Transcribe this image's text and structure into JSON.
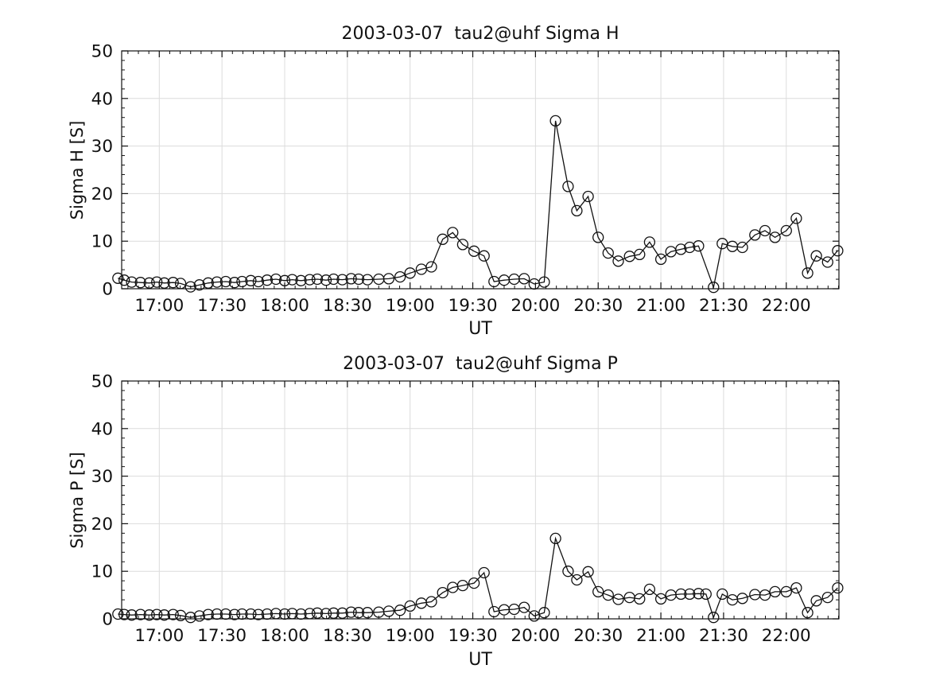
{
  "page": {
    "background": "#ffffff"
  },
  "chart_data": [
    {
      "type": "line",
      "title": "2003-03-07  tau2@uhf Sigma H",
      "xlabel": "UT",
      "ylabel": "Sigma H [S]",
      "ylim": [
        0,
        50
      ],
      "xlim_hours": [
        16.7,
        22.42
      ],
      "yticks": [
        0,
        10,
        20,
        30,
        40,
        50
      ],
      "xticks": [
        {
          "t": 17.0,
          "label": "17:00"
        },
        {
          "t": 17.5,
          "label": "17:30"
        },
        {
          "t": 18.0,
          "label": "18:00"
        },
        {
          "t": 18.5,
          "label": "18:30"
        },
        {
          "t": 19.0,
          "label": "19:00"
        },
        {
          "t": 19.5,
          "label": "19:30"
        },
        {
          "t": 20.0,
          "label": "20:00"
        },
        {
          "t": 20.5,
          "label": "20:30"
        },
        {
          "t": 21.0,
          "label": "21:00"
        },
        {
          "t": 21.5,
          "label": "21:30"
        },
        {
          "t": 22.0,
          "label": "22:00"
        }
      ],
      "x_minor_step_minutes": 5,
      "y_minor_step": 2,
      "grid": true,
      "grid_color": "#dcdcdc",
      "line_color": "#111111",
      "marker": "open-circle",
      "points": [
        [
          16.67,
          2.2
        ],
        [
          16.72,
          1.8
        ],
        [
          16.78,
          1.4
        ],
        [
          16.85,
          1.3
        ],
        [
          16.92,
          1.2
        ],
        [
          16.98,
          1.4
        ],
        [
          17.04,
          1.2
        ],
        [
          17.11,
          1.3
        ],
        [
          17.17,
          1.1
        ],
        [
          17.25,
          0.4
        ],
        [
          17.32,
          0.8
        ],
        [
          17.39,
          1.2
        ],
        [
          17.46,
          1.4
        ],
        [
          17.53,
          1.5
        ],
        [
          17.6,
          1.3
        ],
        [
          17.66,
          1.5
        ],
        [
          17.73,
          1.7
        ],
        [
          17.79,
          1.5
        ],
        [
          17.86,
          1.8
        ],
        [
          17.93,
          2.0
        ],
        [
          18.0,
          1.7
        ],
        [
          18.06,
          1.9
        ],
        [
          18.13,
          1.7
        ],
        [
          18.2,
          1.9
        ],
        [
          18.26,
          2.0
        ],
        [
          18.33,
          1.8
        ],
        [
          18.39,
          2.0
        ],
        [
          18.46,
          1.9
        ],
        [
          18.53,
          2.1
        ],
        [
          18.59,
          2.0
        ],
        [
          18.66,
          1.9
        ],
        [
          18.75,
          2.0
        ],
        [
          18.83,
          2.1
        ],
        [
          18.92,
          2.5
        ],
        [
          19.0,
          3.3
        ],
        [
          19.09,
          4.1
        ],
        [
          19.17,
          4.6
        ],
        [
          19.26,
          10.4
        ],
        [
          19.34,
          11.8
        ],
        [
          19.42,
          9.3
        ],
        [
          19.51,
          7.9
        ],
        [
          19.59,
          6.9
        ],
        [
          19.67,
          1.5
        ],
        [
          19.75,
          1.8
        ],
        [
          19.83,
          2.0
        ],
        [
          19.91,
          2.1
        ],
        [
          19.99,
          1.0
        ],
        [
          20.07,
          1.4
        ],
        [
          20.16,
          35.3
        ],
        [
          20.26,
          21.5
        ],
        [
          20.33,
          16.4
        ],
        [
          20.42,
          19.4
        ],
        [
          20.5,
          10.8
        ],
        [
          20.58,
          7.5
        ],
        [
          20.66,
          5.8
        ],
        [
          20.75,
          6.8
        ],
        [
          20.83,
          7.2
        ],
        [
          20.91,
          9.8
        ],
        [
          21.0,
          6.2
        ],
        [
          21.08,
          7.8
        ],
        [
          21.16,
          8.3
        ],
        [
          21.23,
          8.7
        ],
        [
          21.3,
          9.0
        ],
        [
          21.42,
          0.3
        ],
        [
          21.49,
          9.5
        ],
        [
          21.57,
          8.9
        ],
        [
          21.65,
          8.7
        ],
        [
          21.75,
          11.3
        ],
        [
          21.83,
          12.2
        ],
        [
          21.91,
          10.8
        ],
        [
          22.0,
          12.2
        ],
        [
          22.08,
          14.8
        ],
        [
          22.17,
          3.3
        ],
        [
          22.24,
          6.9
        ],
        [
          22.33,
          5.6
        ],
        [
          22.41,
          8.0
        ]
      ]
    },
    {
      "type": "line",
      "title": "2003-03-07  tau2@uhf Sigma P",
      "xlabel": "UT",
      "ylabel": "Sigma P [S]",
      "ylim": [
        0,
        50
      ],
      "xlim_hours": [
        16.7,
        22.42
      ],
      "yticks": [
        0,
        10,
        20,
        30,
        40,
        50
      ],
      "xticks": [
        {
          "t": 17.0,
          "label": "17:00"
        },
        {
          "t": 17.5,
          "label": "17:30"
        },
        {
          "t": 18.0,
          "label": "18:00"
        },
        {
          "t": 18.5,
          "label": "18:30"
        },
        {
          "t": 19.0,
          "label": "19:00"
        },
        {
          "t": 19.5,
          "label": "19:30"
        },
        {
          "t": 20.0,
          "label": "20:00"
        },
        {
          "t": 20.5,
          "label": "20:30"
        },
        {
          "t": 21.0,
          "label": "21:00"
        },
        {
          "t": 21.5,
          "label": "21:30"
        },
        {
          "t": 22.0,
          "label": "22:00"
        }
      ],
      "x_minor_step_minutes": 5,
      "y_minor_step": 2,
      "grid": true,
      "grid_color": "#dcdcdc",
      "line_color": "#111111",
      "marker": "open-circle",
      "points": [
        [
          16.67,
          1.0
        ],
        [
          16.72,
          0.9
        ],
        [
          16.78,
          0.8
        ],
        [
          16.85,
          0.9
        ],
        [
          16.92,
          0.8
        ],
        [
          16.98,
          0.9
        ],
        [
          17.04,
          0.8
        ],
        [
          17.11,
          0.9
        ],
        [
          17.17,
          0.7
        ],
        [
          17.25,
          0.3
        ],
        [
          17.32,
          0.6
        ],
        [
          17.39,
          0.9
        ],
        [
          17.46,
          1.0
        ],
        [
          17.53,
          1.0
        ],
        [
          17.6,
          0.9
        ],
        [
          17.66,
          1.0
        ],
        [
          17.73,
          1.0
        ],
        [
          17.79,
          0.9
        ],
        [
          17.86,
          1.0
        ],
        [
          17.93,
          1.1
        ],
        [
          18.0,
          1.0
        ],
        [
          18.06,
          1.1
        ],
        [
          18.13,
          1.0
        ],
        [
          18.2,
          1.1
        ],
        [
          18.26,
          1.2
        ],
        [
          18.33,
          1.1
        ],
        [
          18.39,
          1.2
        ],
        [
          18.46,
          1.2
        ],
        [
          18.53,
          1.4
        ],
        [
          18.59,
          1.3
        ],
        [
          18.66,
          1.3
        ],
        [
          18.75,
          1.4
        ],
        [
          18.83,
          1.6
        ],
        [
          18.92,
          1.8
        ],
        [
          19.0,
          2.7
        ],
        [
          19.09,
          3.3
        ],
        [
          19.17,
          3.6
        ],
        [
          19.26,
          5.5
        ],
        [
          19.34,
          6.6
        ],
        [
          19.42,
          7.0
        ],
        [
          19.51,
          7.5
        ],
        [
          19.59,
          9.7
        ],
        [
          19.67,
          1.5
        ],
        [
          19.75,
          1.9
        ],
        [
          19.83,
          2.0
        ],
        [
          19.91,
          2.4
        ],
        [
          19.99,
          0.6
        ],
        [
          20.07,
          1.3
        ],
        [
          20.16,
          16.9
        ],
        [
          20.26,
          10.0
        ],
        [
          20.33,
          8.2
        ],
        [
          20.42,
          9.9
        ],
        [
          20.5,
          5.7
        ],
        [
          20.58,
          5.0
        ],
        [
          20.66,
          4.1
        ],
        [
          20.75,
          4.5
        ],
        [
          20.83,
          4.2
        ],
        [
          20.91,
          6.2
        ],
        [
          21.0,
          4.2
        ],
        [
          21.08,
          5.0
        ],
        [
          21.16,
          5.2
        ],
        [
          21.23,
          5.2
        ],
        [
          21.3,
          5.3
        ],
        [
          21.36,
          5.2
        ],
        [
          21.42,
          0.3
        ],
        [
          21.49,
          5.2
        ],
        [
          21.57,
          4.0
        ],
        [
          21.65,
          4.3
        ],
        [
          21.75,
          5.1
        ],
        [
          21.83,
          5.0
        ],
        [
          21.91,
          5.7
        ],
        [
          22.0,
          5.7
        ],
        [
          22.08,
          6.5
        ],
        [
          22.17,
          1.3
        ],
        [
          22.24,
          3.8
        ],
        [
          22.33,
          4.5
        ],
        [
          22.41,
          6.5
        ]
      ]
    }
  ]
}
